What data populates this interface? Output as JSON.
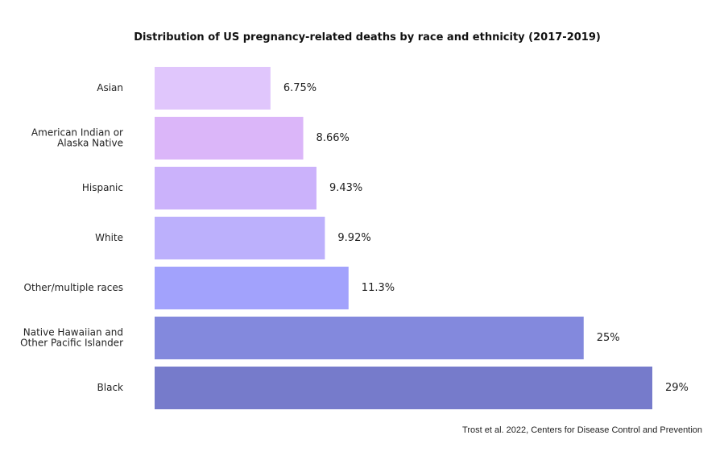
{
  "chart_data": {
    "type": "bar",
    "orientation": "horizontal",
    "title": "Distribution of US pregnancy-related deaths by race and ethnicity (2017-2019)",
    "categories": [
      "Asian",
      "American Indian or Alaska Native",
      "Hispanic",
      "White",
      "Other/multiple races",
      "Native Hawaiian and Other Pacific Islander",
      "Black"
    ],
    "category_lines": [
      [
        "Asian"
      ],
      [
        "American Indian or",
        "Alaska Native"
      ],
      [
        "Hispanic"
      ],
      [
        "White"
      ],
      [
        "Other/multiple races"
      ],
      [
        "Native Hawaiian and",
        "Other Pacific Islander"
      ],
      [
        "Black"
      ]
    ],
    "values": [
      6.75,
      8.66,
      9.43,
      9.92,
      11.3,
      25,
      29
    ],
    "value_labels": [
      "6.75%",
      "8.66%",
      "9.43%",
      "9.92%",
      "11.3%",
      "25%",
      "29%"
    ],
    "colors": [
      "#e0c6fc",
      "#dbb6f9",
      "#cbb2fb",
      "#bcb0fc",
      "#a2a2fc",
      "#8389dd",
      "#767bcb"
    ],
    "xlim": [
      0,
      29
    ],
    "xlabel": "",
    "ylabel": "",
    "grid": false,
    "source": "Trost et al. 2022, Centers for Disease Control and Prevention"
  }
}
